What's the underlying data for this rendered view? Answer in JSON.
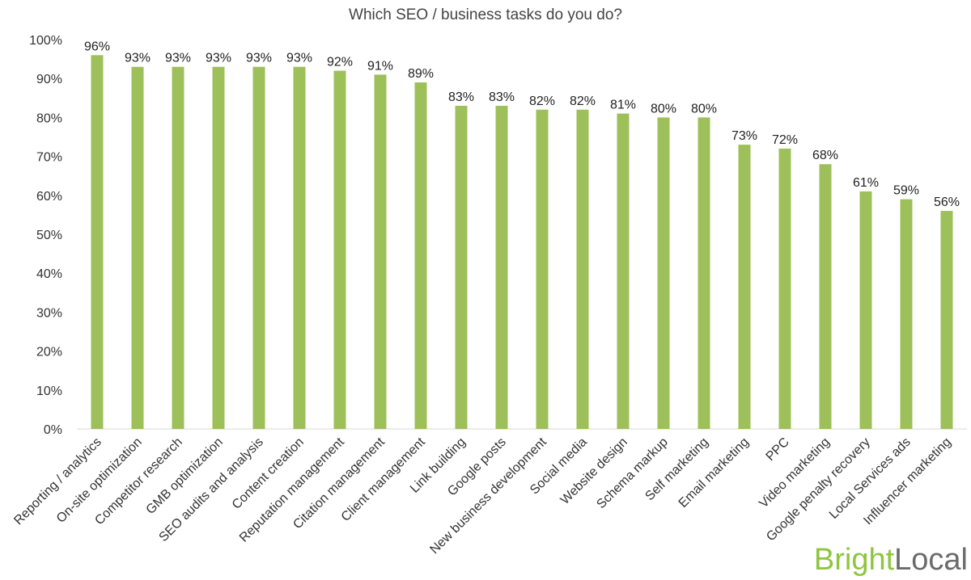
{
  "chart_data": {
    "type": "bar",
    "title": "Which SEO / business tasks do you do?",
    "xlabel": "",
    "ylabel": "",
    "ylim": [
      0,
      100
    ],
    "yticks": [
      "0%",
      "10%",
      "20%",
      "30%",
      "40%",
      "50%",
      "60%",
      "70%",
      "80%",
      "90%",
      "100%"
    ],
    "grid": false,
    "bar_color": "#9dc05a",
    "categories": [
      "Reporting / analytics",
      "On-site optimization",
      "Competitor research",
      "GMB optimization",
      "SEO audits and analysis",
      "Content creation",
      "Reputation management",
      "Citation management",
      "Client management",
      "Link building",
      "Google posts",
      "New business development",
      "Social media",
      "Website design",
      "Schema markup",
      "Self marketing",
      "Email marketing",
      "PPC",
      "Video marketing",
      "Google penalty recovery",
      "Local Services ads",
      "Influencer marketing"
    ],
    "values": [
      96,
      93,
      93,
      93,
      93,
      93,
      92,
      91,
      89,
      83,
      83,
      82,
      82,
      81,
      80,
      80,
      73,
      72,
      68,
      61,
      59,
      56
    ],
    "data_labels": [
      "96%",
      "93%",
      "93%",
      "93%",
      "93%",
      "93%",
      "92%",
      "91%",
      "89%",
      "83%",
      "83%",
      "82%",
      "82%",
      "81%",
      "80%",
      "80%",
      "73%",
      "72%",
      "68%",
      "61%",
      "59%",
      "56%"
    ]
  },
  "logo": {
    "part1": "Bright",
    "part2": "Local",
    "color1": "#8dc63f",
    "color2": "#6b6b6b"
  }
}
